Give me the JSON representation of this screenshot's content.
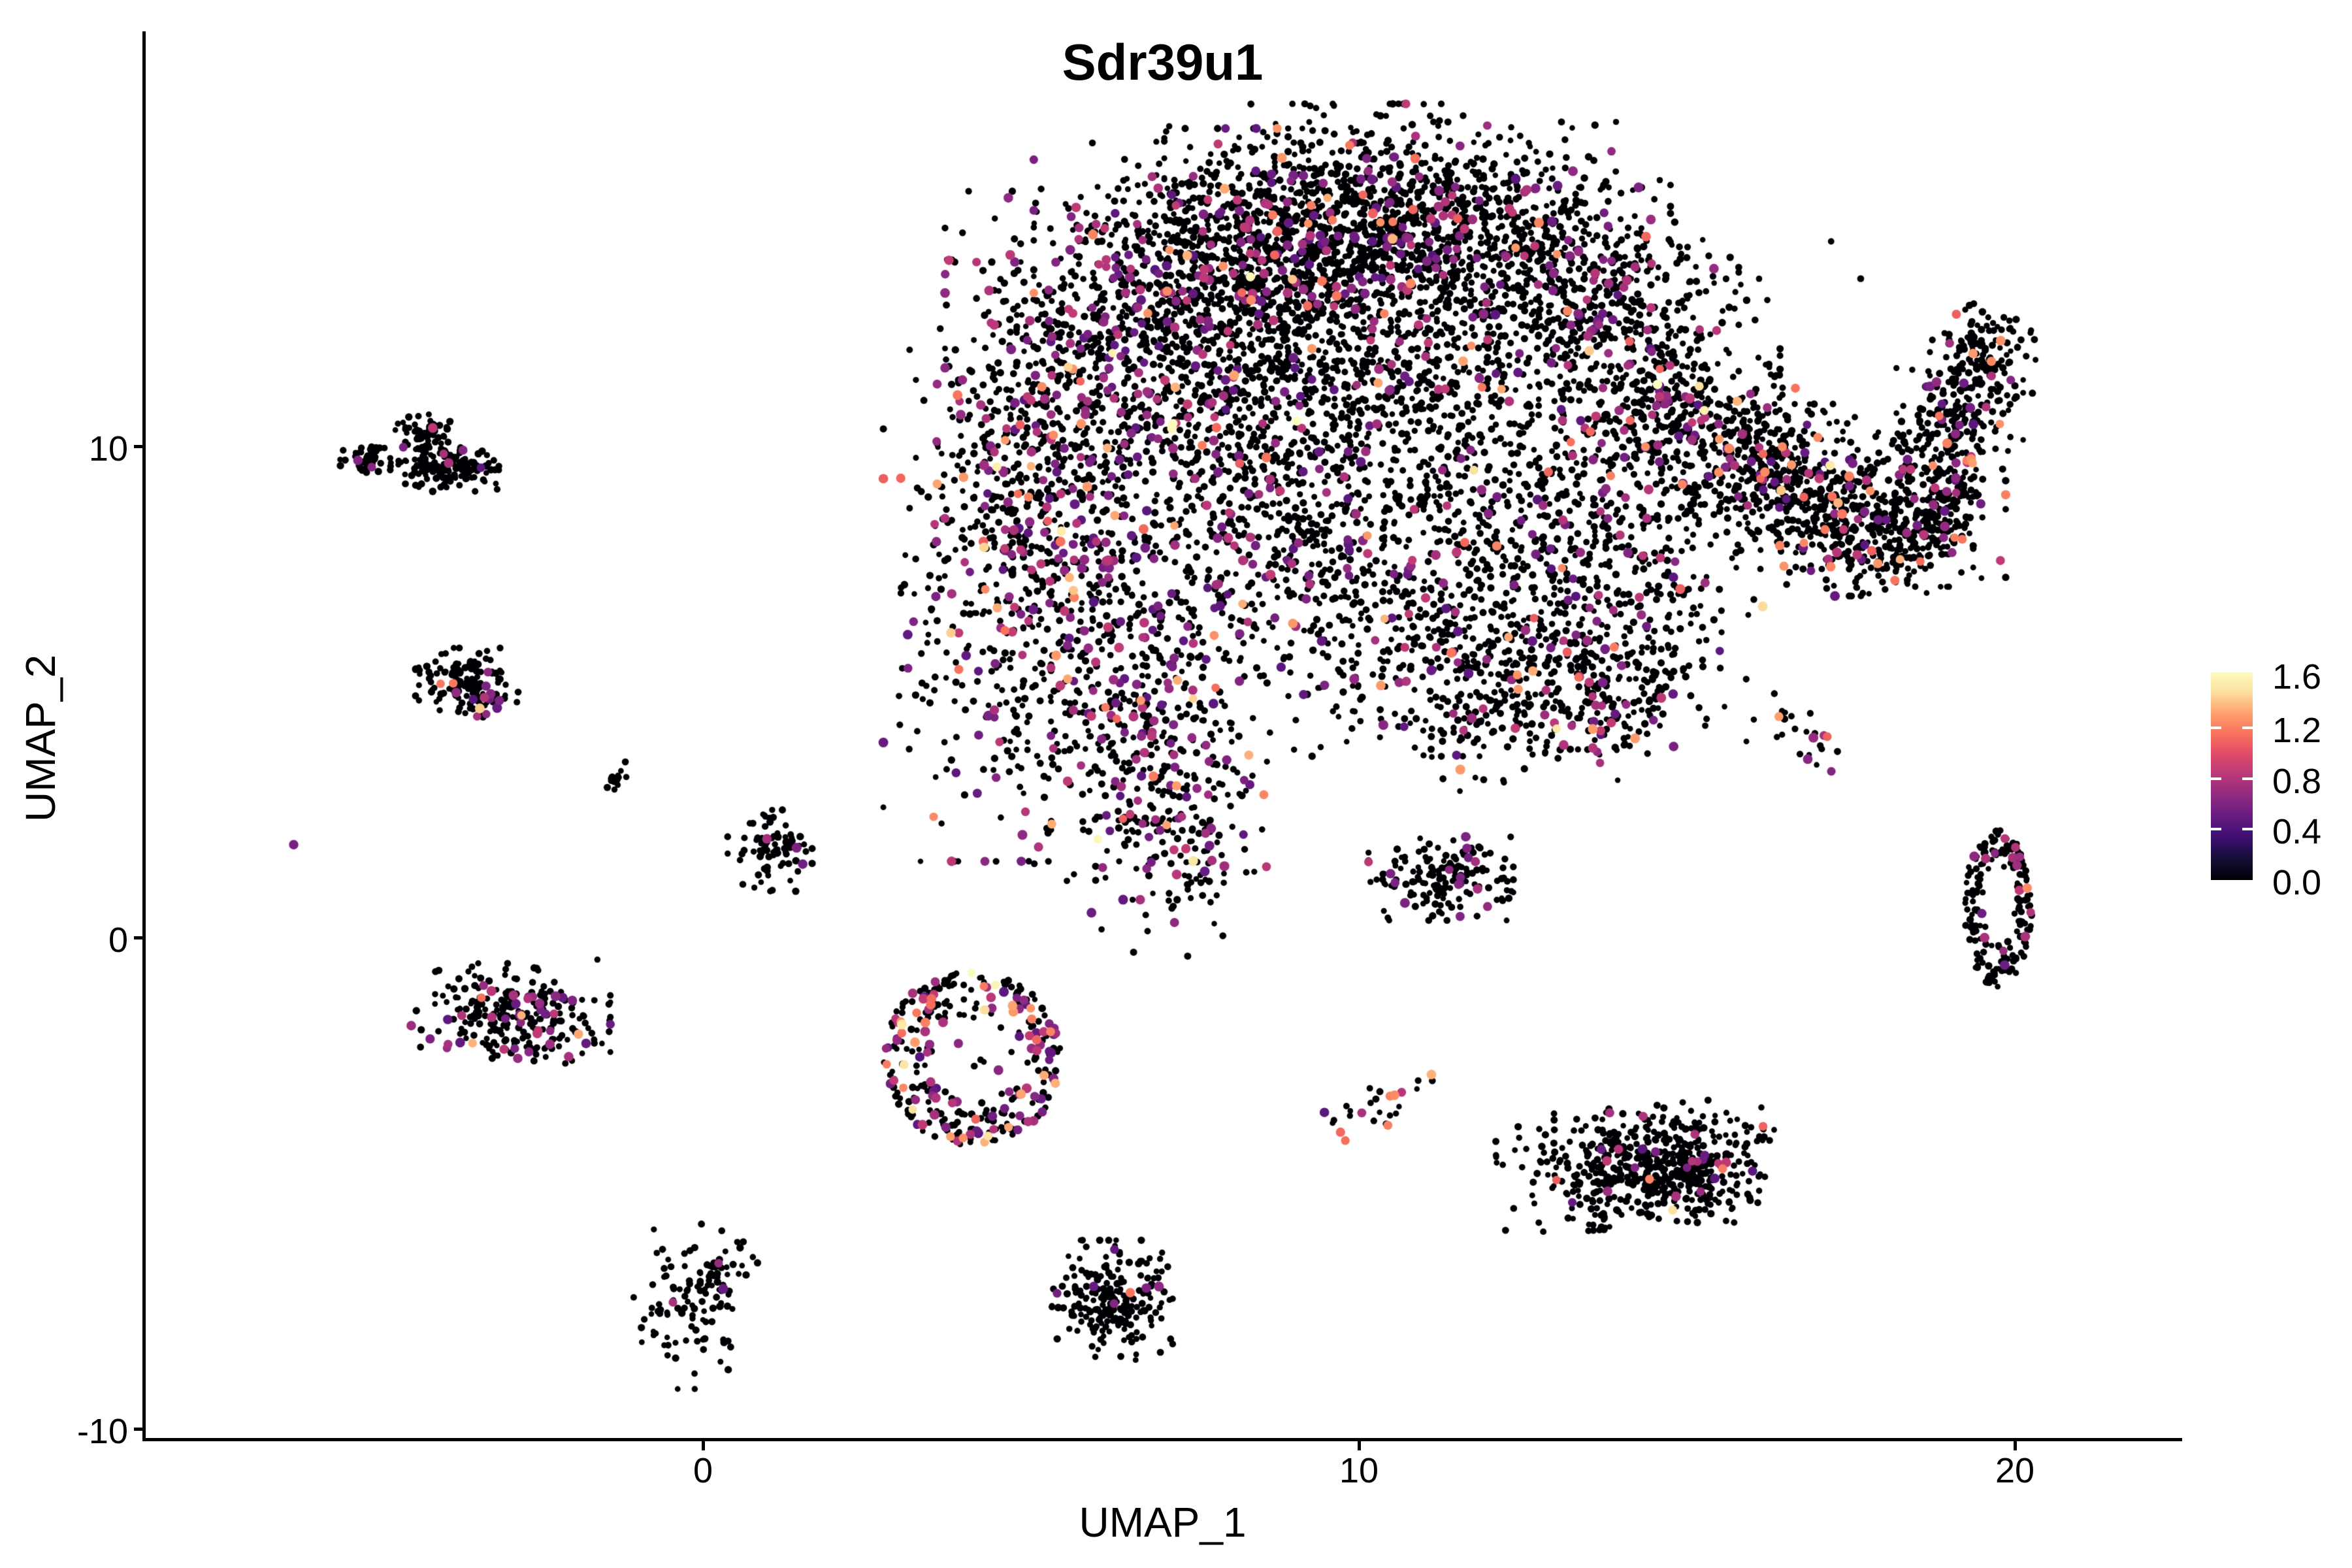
{
  "title": "Sdr39u1",
  "axes": {
    "xlabel": "UMAP_1",
    "ylabel": "UMAP_2",
    "x_tick_labels": [
      "0",
      "10",
      "20"
    ],
    "y_tick_labels": [
      "10",
      "0",
      "-10"
    ],
    "xlim": [
      -8.5,
      22.6
    ],
    "ylim": [
      -10.3,
      18.4
    ],
    "grid": false
  },
  "legend": {
    "tick_labels": [
      "1.6",
      "1.2",
      "0.8",
      "0.4",
      "0.0"
    ],
    "vmin": 0.0,
    "vmax": 1.64,
    "position": "right",
    "palette": "magma"
  },
  "colors": {
    "background": "#ffffff",
    "axis": "#000000",
    "palette_stops": [
      "#000004",
      "#140e36",
      "#3b0f70",
      "#641a80",
      "#8c2981",
      "#b73779",
      "#de4968",
      "#f7705c",
      "#fe9f6d",
      "#fcdd9d",
      "#fcfdbf"
    ]
  },
  "chart_data": {
    "type": "scatter",
    "title": "Sdr39u1",
    "xlabel": "UMAP_1",
    "ylabel": "UMAP_2",
    "value_max": 1.7,
    "seed": 7,
    "dot_radius_black": 5,
    "dot_radius_colored": 7,
    "clusters": [
      {
        "id": "main-left-lower",
        "x": 4.82,
        "y": 6.45,
        "sx": 0.9,
        "sy": 2.13,
        "n": 450,
        "p": 0.22
      },
      {
        "id": "main-left-upper",
        "x": 5.22,
        "y": 9.77,
        "sx": 0.9,
        "sy": 1.73,
        "n": 420,
        "p": 0.22
      },
      {
        "id": "main-shoulder-left",
        "x": 6.22,
        "y": 12.43,
        "sx": 1.1,
        "sy": 1.2,
        "n": 400,
        "p": 0.18
      },
      {
        "id": "main-arc-left",
        "x": 8.01,
        "y": 14.03,
        "sx": 1.29,
        "sy": 1.06,
        "n": 550,
        "p": 0.12
      },
      {
        "id": "main-arc-crest",
        "x": 10.0,
        "y": 14.83,
        "sx": 1.29,
        "sy": 0.93,
        "n": 550,
        "p": 0.1
      },
      {
        "id": "main-arc-right",
        "x": 11.99,
        "y": 14.3,
        "sx": 1.2,
        "sy": 1.0,
        "n": 500,
        "p": 0.1
      },
      {
        "id": "main-shoulder-right",
        "x": 13.49,
        "y": 12.83,
        "sx": 1.0,
        "sy": 1.06,
        "n": 420,
        "p": 0.1
      },
      {
        "id": "main-right-upper",
        "x": 14.58,
        "y": 10.97,
        "sx": 0.8,
        "sy": 1.06,
        "n": 300,
        "p": 0.12
      },
      {
        "id": "main-bridge-left",
        "x": 15.18,
        "y": 9.77,
        "sx": 0.7,
        "sy": 0.8,
        "n": 200,
        "p": 0.12
      },
      {
        "id": "main-tail",
        "x": 6.71,
        "y": 4.45,
        "sx": 0.8,
        "sy": 1.6,
        "n": 350,
        "p": 0.24
      },
      {
        "id": "main-tail-tip",
        "x": 7.21,
        "y": 2.06,
        "sx": 0.6,
        "sy": 1.06,
        "n": 150,
        "p": 0.28
      },
      {
        "id": "main-inner-left",
        "x": 8.71,
        "y": 8.44,
        "sx": 1.1,
        "sy": 1.46,
        "n": 420,
        "p": 0.14
      },
      {
        "id": "main-inner-top",
        "x": 10.7,
        "y": 11.1,
        "sx": 1.1,
        "sy": 1.33,
        "n": 430,
        "p": 0.08
      },
      {
        "id": "main-inner-mid",
        "x": 10.7,
        "y": 6.45,
        "sx": 1.1,
        "sy": 1.2,
        "n": 260,
        "p": 0.12
      },
      {
        "id": "main-inner-right",
        "x": 12.69,
        "y": 8.44,
        "sx": 1.0,
        "sy": 1.2,
        "n": 330,
        "p": 0.1
      },
      {
        "id": "main-bottom-right",
        "x": 12.19,
        "y": 5.12,
        "sx": 1.0,
        "sy": 0.93,
        "n": 280,
        "p": 0.12
      },
      {
        "id": "main-right-inner",
        "x": 14.18,
        "y": 6.45,
        "sx": 0.8,
        "sy": 0.93,
        "n": 220,
        "p": 0.1
      },
      {
        "id": "main-inner-upper-left",
        "x": 7.71,
        "y": 11.1,
        "sx": 1.0,
        "sy": 1.33,
        "n": 380,
        "p": 0.1
      },
      {
        "id": "main-upper-band",
        "x": 9.2,
        "y": 13.1,
        "sx": 1.2,
        "sy": 1.06,
        "n": 450,
        "p": 0.08
      },
      {
        "id": "main-bottom-lobe",
        "x": 13.69,
        "y": 4.72,
        "sx": 0.7,
        "sy": 0.66,
        "n": 120,
        "p": 0.1
      },
      {
        "id": "main-speckle",
        "x": 10.7,
        "y": 9.5,
        "sx": 3.1,
        "sy": 2.6,
        "n": 260,
        "p": 0.1
      },
      {
        "id": "wing-bridge",
        "x": 16.18,
        "y": 9.77,
        "sx": 0.4,
        "sy": 0.66,
        "n": 120,
        "p": 0.08,
        "hot": 0.3
      },
      {
        "id": "wing-left",
        "x": 16.87,
        "y": 9.18,
        "sx": 0.6,
        "sy": 0.73,
        "n": 300,
        "p": 0.1,
        "hot": 0.35
      },
      {
        "id": "wing-bottom",
        "x": 17.87,
        "y": 8.24,
        "sx": 0.65,
        "sy": 0.56,
        "n": 260,
        "p": 0.1,
        "hot": 0.35
      },
      {
        "id": "wing-right",
        "x": 18.71,
        "y": 8.98,
        "sx": 0.5,
        "sy": 0.8,
        "n": 240,
        "p": 0.1,
        "hot": 0.35
      },
      {
        "id": "wing-tip-lower",
        "x": 19.16,
        "y": 10.57,
        "sx": 0.42,
        "sy": 0.66,
        "n": 150,
        "p": 0.08,
        "hot": 0.3
      },
      {
        "id": "wing-tip",
        "x": 19.51,
        "y": 11.84,
        "sx": 0.35,
        "sy": 0.51,
        "n": 130,
        "p": 0.08,
        "hot": 0.3
      },
      {
        "id": "sat-topleft-a",
        "x": -4.26,
        "y": 10.28,
        "sx": 0.18,
        "sy": 0.17,
        "n": 55,
        "p": 0.02
      },
      {
        "id": "sat-topleft-b",
        "x": -3.94,
        "y": 9.61,
        "sx": 0.36,
        "sy": 0.23,
        "n": 150,
        "p": 0.012
      },
      {
        "id": "sat-topleft-c",
        "x": -5.14,
        "y": 9.77,
        "sx": 0.17,
        "sy": 0.15,
        "n": 45,
        "p": 0.01
      },
      {
        "id": "sat-left-a",
        "x": -3.6,
        "y": 5.25,
        "sx": 0.34,
        "sy": 0.28,
        "n": 130,
        "p": 0.05
      },
      {
        "id": "sat-left-tail",
        "x": -3.27,
        "y": 4.75,
        "sx": 0.22,
        "sy": 0.13,
        "n": 25,
        "p": 0.3,
        "rot": -25
      },
      {
        "id": "sat-tiny-streak",
        "x": -1.3,
        "y": 3.23,
        "sx": 0.1,
        "sy": 0.11,
        "n": 13,
        "p": 0.1,
        "rot": -30
      },
      {
        "id": "sat-small",
        "x": 1.02,
        "y": 1.77,
        "sx": 0.28,
        "sy": 0.36,
        "n": 85,
        "p": 0.05
      },
      {
        "id": "sat-left-bottom",
        "x": -2.93,
        "y": -1.56,
        "sx": 0.66,
        "sy": 0.45,
        "n": 260,
        "p": 0.18,
        "hot": 0.1
      },
      {
        "id": "donut",
        "x": 4.1,
        "y": -2.46,
        "sx": 1.37,
        "sy": 1.77,
        "n": 300,
        "p": 0.3,
        "hot": 0.22,
        "bright": 0.09,
        "shape": "ring",
        "hole": 0.45
      },
      {
        "id": "donut-inner",
        "x": 4.1,
        "y": -2.39,
        "sx": 0.45,
        "sy": 0.6,
        "n": 14,
        "p": 0.15
      },
      {
        "id": "sat-mid-elongated",
        "x": 11.25,
        "y": 1.2,
        "sx": 0.48,
        "sy": 0.37,
        "n": 165,
        "p": 0.09
      },
      {
        "id": "sat-mid-streak",
        "x": 10.2,
        "y": -3.46,
        "sx": 0.45,
        "sy": 0.21,
        "n": 28,
        "p": 0.5,
        "hot": 0.35,
        "bright": 0.12,
        "rot": -28
      },
      {
        "id": "sat-right-streak",
        "x": 16.79,
        "y": 4.2,
        "sx": 0.38,
        "sy": 0.19,
        "n": 22,
        "p": 0.15,
        "hot": 0.5,
        "rot": 38
      },
      {
        "id": "right-ring",
        "x": 19.74,
        "y": 0.6,
        "sx": 0.52,
        "sy": 1.6,
        "n": 190,
        "p": 0.05,
        "shape": "ring",
        "hole": 0.42
      },
      {
        "id": "bottom-right-a",
        "x": 14.16,
        "y": -4.67,
        "sx": 0.89,
        "sy": 0.53,
        "n": 440,
        "p": 0.05,
        "rot": -5
      },
      {
        "id": "bottom-right-b",
        "x": 15.18,
        "y": -4.72,
        "sx": 0.5,
        "sy": 0.47,
        "n": 170,
        "p": 0.06
      },
      {
        "id": "bottom-left-comma",
        "x": -0.16,
        "y": -7.51,
        "sx": 0.4,
        "sy": 0.73,
        "n": 90,
        "p": 0.02
      },
      {
        "id": "bottom-left-comma-hook",
        "x": 0.29,
        "y": -6.78,
        "sx": 0.25,
        "sy": 0.27,
        "n": 40,
        "p": 0.06,
        "rot": -40
      },
      {
        "id": "bottom-center",
        "x": 6.24,
        "y": -7.38,
        "sx": 0.4,
        "sy": 0.53,
        "n": 220,
        "p": 0.025
      }
    ],
    "singles": [
      {
        "x": -6.24,
        "y": 1.89,
        "v": 0.6
      },
      {
        "x": -4.69,
        "y": 10.33,
        "v": 0
      },
      {
        "x": -1.61,
        "y": -0.45,
        "v": 0
      },
      {
        "x": 16.45,
        "y": 4.61,
        "v": 0
      }
    ]
  }
}
